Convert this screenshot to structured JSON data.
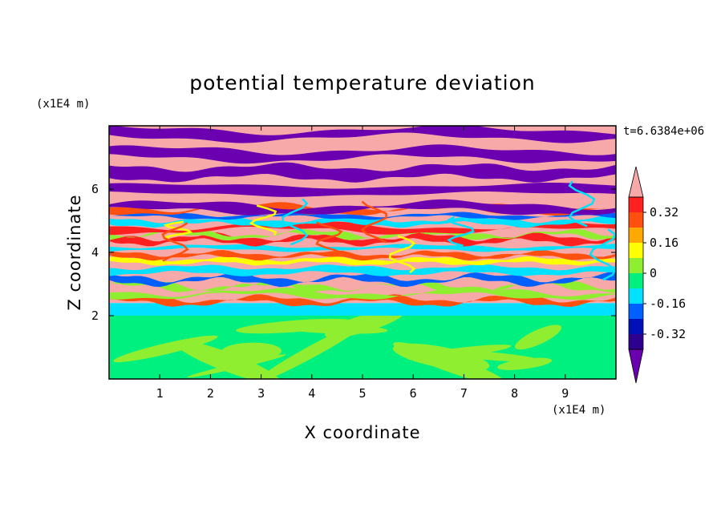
{
  "chart_data": {
    "type": "heatmap",
    "title": "potential temperature deviation",
    "xlabel": "X coordinate",
    "ylabel": "Z coordinate",
    "x_unit": "(x1E4 m)",
    "y_unit": "(x1E4 m)",
    "time_label": "t=6.6384e+06",
    "xlim": [
      0,
      10
    ],
    "ylim": [
      0,
      8
    ],
    "x_ticks": [
      "1",
      "2",
      "3",
      "4",
      "5",
      "6",
      "7",
      "8",
      "9"
    ],
    "y_ticks": [
      "2",
      "4",
      "6"
    ],
    "colorbar": {
      "levels": [
        -0.48,
        -0.4,
        -0.32,
        -0.24,
        -0.16,
        -0.08,
        0,
        0.08,
        0.16,
        0.24,
        0.32,
        0.4,
        0.48
      ],
      "colors": [
        "#6a00b0",
        "#2e008f",
        "#0010b8",
        "#0060ff",
        "#00e0ff",
        "#00f080",
        "#90ee30",
        "#ffff00",
        "#ffa800",
        "#ff5010",
        "#ff2020",
        "#f7a8a8"
      ],
      "labels": [
        "0.32",
        "0.16",
        "0",
        "-0.16",
        "-0.32"
      ],
      "extend": "both"
    },
    "field_summary": [
      {
        "z_range": [
          0,
          2.0
        ],
        "value_range": [
          -0.08,
          0.08
        ],
        "pattern": "green convective region"
      },
      {
        "z_range": [
          2.0,
          2.4
        ],
        "value_range": [
          -0.16,
          -0.08
        ],
        "pattern": "cyan inversion layer"
      },
      {
        "z_range": [
          2.4,
          5.5
        ],
        "value_range": [
          -0.48,
          0.48
        ],
        "pattern": "mixed filaments"
      },
      {
        "z_range": [
          5.5,
          8.0
        ],
        "value_range": [
          -0.48,
          0.48
        ],
        "pattern": "alternating purple and pink layers"
      }
    ]
  }
}
